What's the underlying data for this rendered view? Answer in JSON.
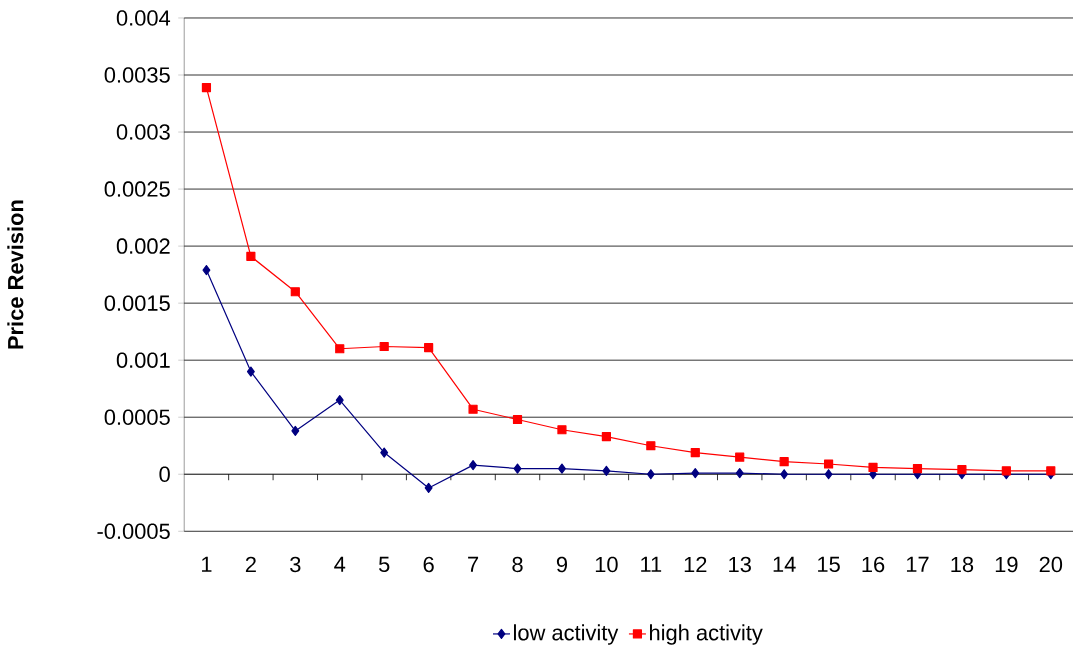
{
  "chart_data": {
    "type": "line",
    "ylabel": "Price Revision",
    "categories": [
      "1",
      "2",
      "3",
      "4",
      "5",
      "6",
      "7",
      "8",
      "9",
      "10",
      "11",
      "12",
      "13",
      "14",
      "15",
      "16",
      "17",
      "18",
      "19",
      "20"
    ],
    "series": [
      {
        "name": "low activity",
        "color": "#000080",
        "marker": "diamond",
        "values": [
          0.00179,
          0.0009,
          0.00038,
          0.00065,
          0.00019,
          -0.00012,
          8e-05,
          5e-05,
          5e-05,
          3e-05,
          0,
          1e-05,
          1e-05,
          0,
          0,
          0,
          0,
          0,
          0,
          0
        ]
      },
      {
        "name": "high activity",
        "color": "#ff0000",
        "marker": "square",
        "values": [
          0.00339,
          0.00191,
          0.0016,
          0.0011,
          0.00112,
          0.00111,
          0.00057,
          0.00048,
          0.00039,
          0.00033,
          0.00025,
          0.00019,
          0.00015,
          0.00011,
          9e-05,
          6e-05,
          5e-05,
          4e-05,
          3e-05,
          3e-05
        ]
      }
    ],
    "ylim": [
      -0.0005,
      0.004
    ],
    "yticks": [
      -0.0005,
      0,
      0.0005,
      0.001,
      0.0015,
      0.002,
      0.0025,
      0.003,
      0.0035,
      0.004
    ],
    "grid": "y",
    "legend": "bottom"
  }
}
